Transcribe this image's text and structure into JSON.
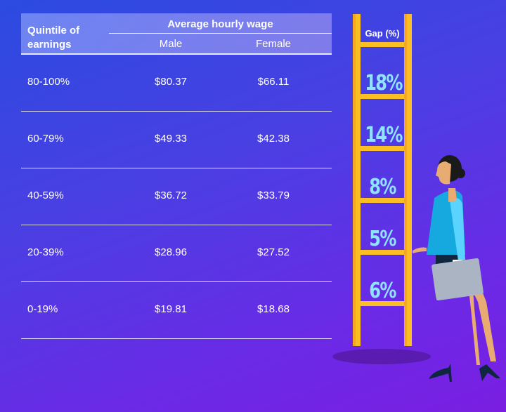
{
  "chart_data": {
    "type": "table",
    "header": {
      "quintile": "Quintile of earnings",
      "group": "Average hourly wage",
      "male": "Male",
      "female": "Female",
      "gap": "Gap (%)"
    },
    "rows": [
      {
        "quintile": "80-100%",
        "male": "$80.37",
        "female": "$66.11",
        "gap": "18%"
      },
      {
        "quintile": "60-79%",
        "male": "$49.33",
        "female": "$42.38",
        "gap": "14%"
      },
      {
        "quintile": "40-59%",
        "male": "$36.72",
        "female": "$33.79",
        "gap": "8%"
      },
      {
        "quintile": "20-39%",
        "male": "$28.96",
        "female": "$27.52",
        "gap": "5%"
      },
      {
        "quintile": "0-19%",
        "male": "$19.81",
        "female": "$18.68",
        "gap": "6%"
      }
    ]
  },
  "colors": {
    "ladder": "#fbbf24",
    "gap_text": "#8fe3ff"
  }
}
